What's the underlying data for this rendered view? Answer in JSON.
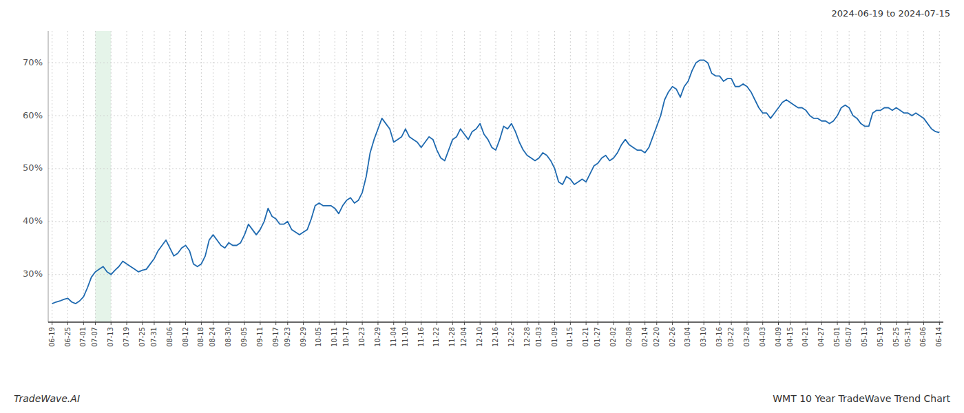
{
  "chart_data": {
    "type": "line",
    "title": "WMT 10 Year TradeWave Trend Chart",
    "subtitle": "2024-06-19 to 2024-07-15",
    "annotations": [
      "TradeWave.AI"
    ],
    "color": "#1f6ab0",
    "grid": true,
    "ylim": [
      21,
      76
    ],
    "yticks": [
      {
        "value": 30,
        "label": "30%"
      },
      {
        "value": 40,
        "label": "40%"
      },
      {
        "value": 50,
        "label": "50%"
      },
      {
        "value": 60,
        "label": "60%"
      },
      {
        "value": 70,
        "label": "70%"
      }
    ],
    "highlight": {
      "from": "07-07",
      "to": "07-13",
      "color": "#d4edda"
    },
    "categories": [
      "06-19",
      null,
      null,
      null,
      "06-25",
      null,
      null,
      null,
      "07-01",
      null,
      null,
      "07-07",
      null,
      null,
      null,
      "07-13",
      null,
      null,
      null,
      "07-19",
      null,
      null,
      null,
      "07-25",
      null,
      null,
      "07-31",
      null,
      null,
      null,
      "08-06",
      null,
      null,
      null,
      "08-12",
      null,
      null,
      null,
      "08-18",
      null,
      null,
      "08-24",
      null,
      null,
      null,
      "08-30",
      null,
      null,
      null,
      "09-05",
      null,
      null,
      null,
      "09-11",
      null,
      null,
      null,
      "09-17",
      null,
      null,
      "09-23",
      null,
      null,
      null,
      "09-29",
      null,
      null,
      null,
      "10-05",
      null,
      null,
      null,
      "10-11",
      null,
      null,
      "10-17",
      null,
      null,
      null,
      "10-23",
      null,
      null,
      null,
      "10-29",
      null,
      null,
      null,
      "11-04",
      null,
      null,
      "11-10",
      null,
      null,
      null,
      "11-16",
      null,
      null,
      null,
      "11-22",
      null,
      null,
      null,
      "11-28",
      null,
      null,
      "12-04",
      null,
      null,
      null,
      "12-10",
      null,
      null,
      null,
      "12-16",
      null,
      null,
      null,
      "12-22",
      null,
      null,
      null,
      "12-28",
      null,
      null,
      "01-03",
      null,
      null,
      null,
      "01-09",
      null,
      null,
      null,
      "01-15",
      null,
      null,
      null,
      "01-21",
      null,
      null,
      "01-27",
      null,
      null,
      null,
      "02-02",
      null,
      null,
      null,
      "02-08",
      null,
      null,
      null,
      "02-14",
      null,
      null,
      "02-20",
      null,
      null,
      null,
      "02-26",
      null,
      null,
      null,
      "03-04",
      null,
      null,
      null,
      "03-10",
      null,
      null,
      null,
      "03-16",
      null,
      null,
      "03-22",
      null,
      null,
      null,
      "03-28",
      null,
      null,
      null,
      "04-03",
      null,
      null,
      null,
      "04-09",
      null,
      null,
      "04-15",
      null,
      null,
      null,
      "04-21",
      null,
      null,
      null,
      "04-27",
      null,
      null,
      null,
      "05-01",
      null,
      null,
      "05-07",
      null,
      null,
      null,
      "05-13",
      null,
      null,
      null,
      "05-19",
      null,
      null,
      null,
      "05-25",
      null,
      null,
      "05-31",
      null,
      null,
      null,
      "06-06",
      null,
      null,
      null,
      "06-14"
    ],
    "values": [
      24.5,
      24.8,
      25.0,
      25.3,
      25.5,
      24.8,
      24.5,
      25.0,
      25.8,
      27.5,
      29.5,
      30.5,
      31.0,
      31.5,
      30.5,
      30.0,
      30.8,
      31.5,
      32.5,
      32.0,
      31.5,
      31.0,
      30.5,
      30.8,
      31.0,
      32.0,
      33.0,
      34.5,
      35.5,
      36.5,
      35.0,
      33.5,
      34.0,
      35.0,
      35.5,
      34.5,
      32.0,
      31.5,
      32.0,
      33.5,
      36.5,
      37.5,
      36.5,
      35.5,
      35.0,
      36.0,
      35.5,
      35.5,
      36.0,
      37.5,
      39.5,
      38.5,
      37.5,
      38.5,
      40.0,
      42.5,
      41.0,
      40.5,
      39.5,
      39.5,
      40.0,
      38.5,
      38.0,
      37.5,
      38.0,
      38.5,
      40.5,
      43.0,
      43.5,
      43.0,
      43.0,
      43.0,
      42.5,
      41.5,
      43.0,
      44.0,
      44.5,
      43.5,
      44.0,
      45.5,
      48.5,
      53.0,
      55.5,
      57.5,
      59.5,
      58.5,
      57.5,
      55.0,
      55.5,
      56.0,
      57.5,
      56.0,
      55.5,
      55.0,
      54.0,
      55.0,
      56.0,
      55.5,
      53.5,
      52.0,
      51.5,
      53.5,
      55.5,
      56.0,
      57.5,
      56.5,
      55.5,
      57.0,
      57.5,
      58.5,
      56.5,
      55.5,
      54.0,
      53.5,
      55.5,
      58.0,
      57.5,
      58.5,
      57.0,
      55.0,
      53.5,
      52.5,
      52.0,
      51.5,
      52.0,
      53.0,
      52.5,
      51.5,
      50.0,
      47.5,
      47.0,
      48.5,
      48.0,
      47.0,
      47.5,
      48.0,
      47.5,
      49.0,
      50.5,
      51.0,
      52.0,
      52.5,
      51.5,
      52.0,
      53.0,
      54.5,
      55.5,
      54.5,
      54.0,
      53.5,
      53.5,
      53.0,
      54.0,
      56.0,
      58.0,
      60.0,
      63.0,
      64.5,
      65.5,
      65.0,
      63.5,
      65.5,
      66.5,
      68.5,
      70.0,
      70.5,
      70.5,
      70.0,
      68.0,
      67.5,
      67.5,
      66.5,
      67.0,
      67.0,
      65.5,
      65.5,
      66.0,
      65.5,
      64.5,
      63.0,
      61.5,
      60.5,
      60.5,
      59.5,
      60.5,
      61.5,
      62.5,
      63.0,
      62.5,
      62.0,
      61.5,
      61.5,
      61.0,
      60.0,
      59.5,
      59.5,
      59.0,
      59.0,
      58.5,
      59.0,
      60.0,
      61.5,
      62.0,
      61.5,
      60.0,
      59.5,
      58.5,
      58.0,
      58.0,
      60.5,
      61.0,
      61.0,
      61.5,
      61.5,
      61.0,
      61.5,
      61.0,
      60.5,
      60.5,
      60.0,
      60.5,
      60.0,
      59.5,
      58.5,
      57.5,
      57.0,
      56.8
    ]
  }
}
